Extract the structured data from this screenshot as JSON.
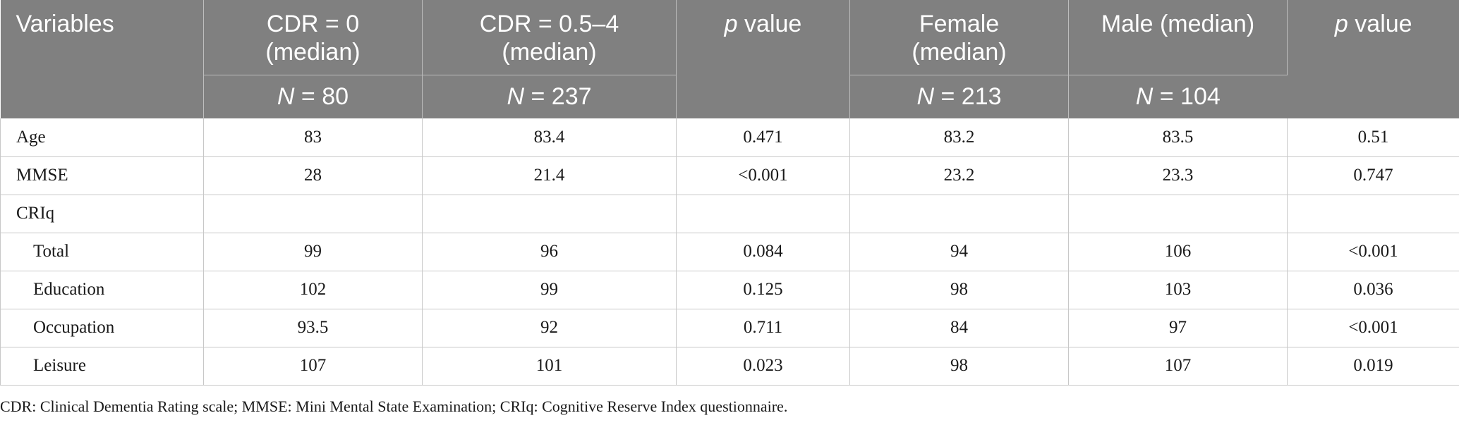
{
  "header": {
    "variables": "Variables",
    "cdr0_label": "CDR = 0",
    "cdr0_sub": "(median)",
    "cdr0_n_label": "N",
    "cdr0_n_value": " = 80",
    "cdr05_label": "CDR = 0.5–4",
    "cdr05_sub": "(median)",
    "cdr05_n_label": "N",
    "cdr05_n_value": " = 237",
    "p_italic": "p",
    "p_rest": " value",
    "female_label": "Female",
    "female_sub": "(median)",
    "female_n_label": "N",
    "female_n_value": " = 213",
    "male_label": "Male (median)",
    "male_n_label": "N",
    "male_n_value": " = 104",
    "p2_italic": "p",
    "p2_rest": " value"
  },
  "rows": [
    {
      "label": "Age",
      "cdr0": "83",
      "cdr05": "83.4",
      "p1": "0.471",
      "female": "83.2",
      "male": "83.5",
      "p2": "0.51"
    },
    {
      "label": "MMSE",
      "cdr0": "28",
      "cdr05": "21.4",
      "p1": "<0.001",
      "female": "23.2",
      "male": "23.3",
      "p2": "0.747"
    },
    {
      "label": "CRIq",
      "cdr0": "",
      "cdr05": "",
      "p1": "",
      "female": "",
      "male": "",
      "p2": ""
    },
    {
      "label": "Total",
      "cdr0": "99",
      "cdr05": "96",
      "p1": "0.084",
      "female": "94",
      "male": "106",
      "p2": "<0.001"
    },
    {
      "label": "Education",
      "cdr0": "102",
      "cdr05": "99",
      "p1": "0.125",
      "female": "98",
      "male": "103",
      "p2": "0.036"
    },
    {
      "label": "Occupation",
      "cdr0": "93.5",
      "cdr05": "92",
      "p1": "0.711",
      "female": "84",
      "male": "97",
      "p2": "<0.001"
    },
    {
      "label": "Leisure",
      "cdr0": "107",
      "cdr05": "101",
      "p1": "0.023",
      "female": "98",
      "male": "107",
      "p2": "0.019"
    }
  ],
  "footnote": "CDR: Clinical Dementia Rating scale; MMSE: Mini Mental State Examination; CRIq: Cognitive Reserve Index questionnaire."
}
